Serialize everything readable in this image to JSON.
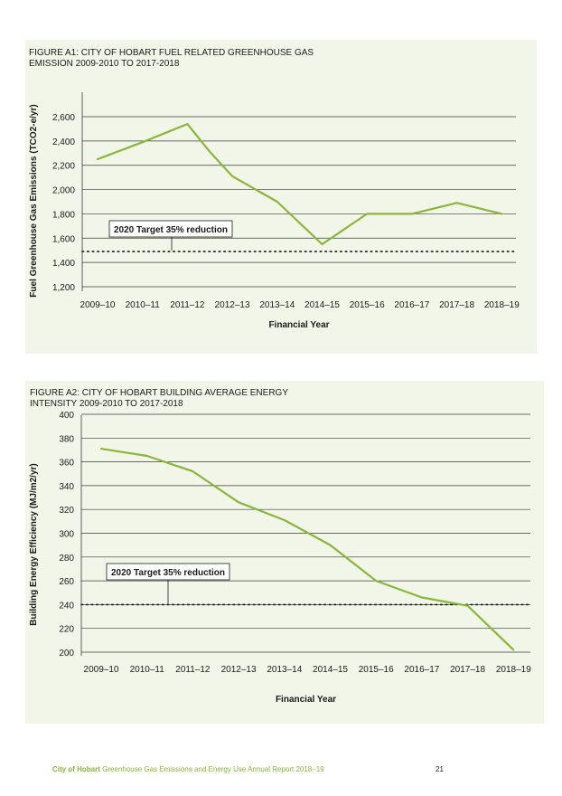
{
  "figures": [
    {
      "title": "FIGURE A1: CITY OF HOBART FUEL RELATED GREENHOUSE GAS EMISSION 2009-2010 TO 2017-2018",
      "annotation": "2020 Target 35% reduction"
    },
    {
      "title": "FIGURE A2: CITY OF HOBART BUILDING AVERAGE ENERGY INTENSITY 2009-2010 TO 2017-2018",
      "annotation": "2020 Target 35% reduction"
    }
  ],
  "chart_data": [
    {
      "type": "line",
      "title": "FIGURE A1: CITY OF HOBART FUEL RELATED GREENHOUSE GAS EMISSION 2009-2010 TO 2017-2018",
      "xlabel": "Financial Year",
      "ylabel": "Fuel Greenhouse Gas Emissions (TCO2-e/yr)",
      "categories": [
        "2009–10",
        "2010–11",
        "2011–12",
        "2012–13",
        "2013–14",
        "2014–15",
        "2015–16",
        "2016–17",
        "2017–18",
        "2018–19"
      ],
      "series": [
        {
          "points": [
            [
              0,
              2250
            ],
            [
              1,
              2390
            ],
            [
              2,
              2540
            ],
            [
              2.5,
              2310
            ],
            [
              3,
              2110
            ],
            [
              4,
              1900
            ],
            [
              5,
              1550
            ],
            [
              6,
              1800
            ],
            [
              7,
              1800
            ],
            [
              8,
              1890
            ],
            [
              9,
              1800
            ]
          ]
        }
      ],
      "target": 1490,
      "target_label": "2020 Target 35% reduction",
      "ylim": [
        1200,
        2600
      ],
      "ytick_labels": [
        "1,200",
        "1,400",
        "1,600",
        "1,800",
        "2,000",
        "2,200",
        "2,400",
        "2,600"
      ],
      "ytick_values": [
        1200,
        1400,
        1600,
        1800,
        2000,
        2200,
        2400,
        2600
      ],
      "grid": true,
      "line_color": "#8ab63a"
    },
    {
      "type": "line",
      "title": "FIGURE A2: CITY OF HOBART BUILDING AVERAGE ENERGY INTENSITY 2009-2010 TO 2017-2018",
      "xlabel": "Financial Year",
      "ylabel": "Building Energy Efficiency (MJ/m2/yr)",
      "categories": [
        "2009–10",
        "2010–11",
        "2011–12",
        "2012–13",
        "2013–14",
        "2014–15",
        "2015–16",
        "2016–17",
        "2017–18",
        "2018–19"
      ],
      "series": [
        {
          "points": [
            [
              0,
              371
            ],
            [
              1,
              365
            ],
            [
              2,
              352
            ],
            [
              3,
              326
            ],
            [
              4,
              311
            ],
            [
              5,
              290
            ],
            [
              6,
              260
            ],
            [
              7,
              246
            ],
            [
              8,
              239
            ],
            [
              9,
              202
            ]
          ]
        }
      ],
      "target": 240,
      "target_label": "2020 Target 35% reduction",
      "ylim": [
        200,
        400
      ],
      "ytick_labels": [
        "200",
        "220",
        "240",
        "260",
        "280",
        "300",
        "320",
        "340",
        "360",
        "380",
        "400"
      ],
      "ytick_values": [
        200,
        220,
        240,
        260,
        280,
        300,
        320,
        340,
        360,
        380,
        400
      ],
      "grid": true,
      "line_color": "#8ab63a"
    }
  ],
  "footer": {
    "brand": "City of Hobart",
    "text": " Greenhouse Gas Emissions and Energy Use Annual Report 2018–19",
    "page": "21"
  }
}
